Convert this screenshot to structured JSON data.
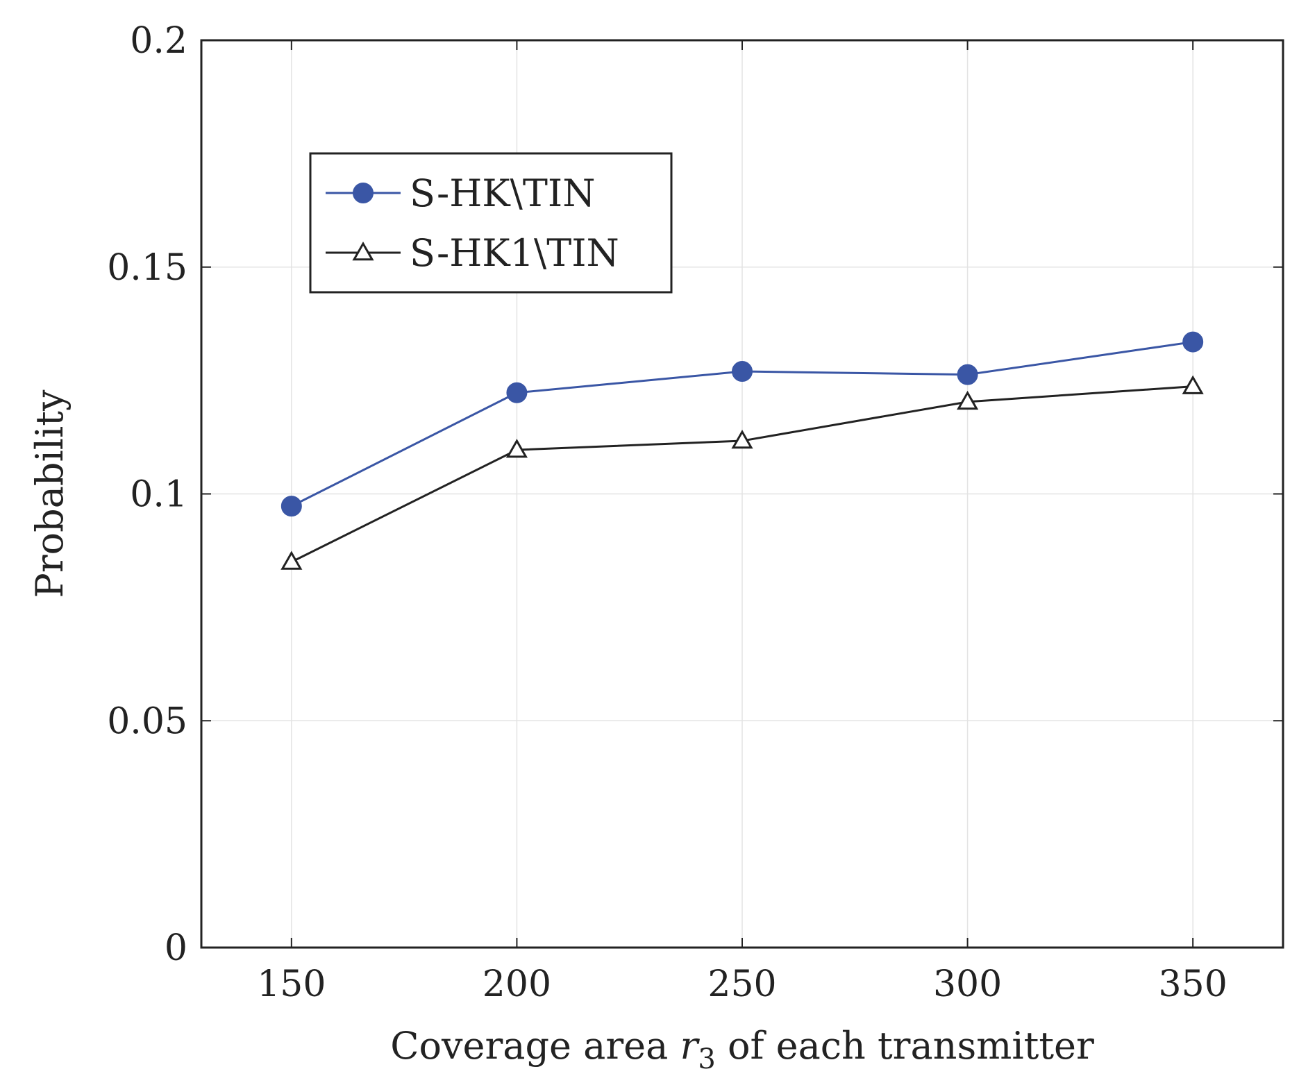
{
  "chart_data": {
    "type": "line",
    "title": "",
    "xlabel_parts": {
      "before": "Coverage area ",
      "var": "r",
      "sub": "3",
      "after": " of each transmitter"
    },
    "ylabel": "Probability",
    "x": [
      150,
      200,
      250,
      300,
      350
    ],
    "x_ticks": [
      150,
      200,
      250,
      300,
      350
    ],
    "x_tick_labels": [
      "150",
      "200",
      "250",
      "300",
      "350"
    ],
    "xlim": [
      130,
      370
    ],
    "ylim": [
      0,
      0.2
    ],
    "y_ticks": [
      0,
      0.05,
      0.1,
      0.15,
      0.2
    ],
    "y_tick_labels": [
      "0",
      "0.05",
      "0.1",
      "0.15",
      "0.2"
    ],
    "grid": true,
    "legend_position": "upper-left",
    "series": [
      {
        "name": "S-HK\\TIN",
        "color": "#3a56a5",
        "marker": "circle",
        "values": [
          0.0973,
          0.1223,
          0.127,
          0.1263,
          0.1335
        ]
      },
      {
        "name": "S-HK1\\TIN",
        "color": "#222222",
        "marker": "triangle-open",
        "values": [
          0.085,
          0.1097,
          0.1117,
          0.1203,
          0.1237
        ]
      }
    ]
  }
}
